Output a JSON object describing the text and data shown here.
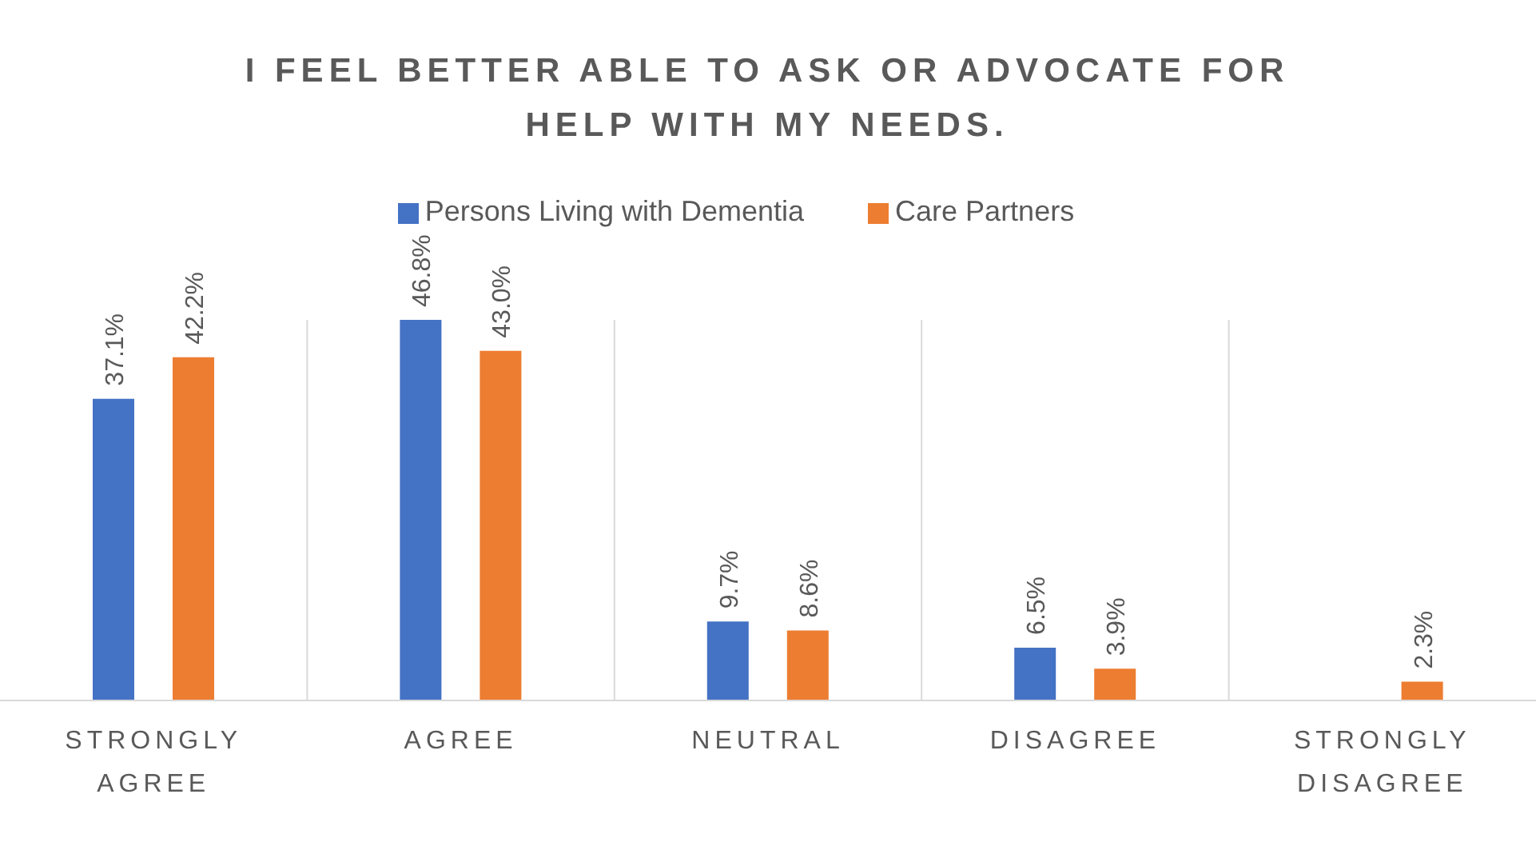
{
  "chart_data": {
    "type": "bar",
    "title": "I FEEL BETTER ABLE TO ASK OR ADVOCATE FOR HELP WITH MY NEEDS.",
    "categories": [
      "STRONGLY AGREE",
      "AGREE",
      "NEUTRAL",
      "DISAGREE",
      "STRONGLY DISAGREE"
    ],
    "grid": "x",
    "legend": "top",
    "series": [
      {
        "name": "Persons Living with Dementia",
        "color": "#4472c4",
        "values": [
          37.1,
          46.8,
          9.7,
          6.5,
          null
        ],
        "value_labels": [
          "37.1%",
          "46.8%",
          "9.7%",
          "6.5%",
          null
        ]
      },
      {
        "name": "Care Partners",
        "color": "#ed7d31",
        "values": [
          42.2,
          43.0,
          8.6,
          3.9,
          2.3
        ],
        "value_labels": [
          "42.2%",
          "43.0%",
          "8.6%",
          "3.9%",
          "2.3%"
        ]
      }
    ]
  }
}
